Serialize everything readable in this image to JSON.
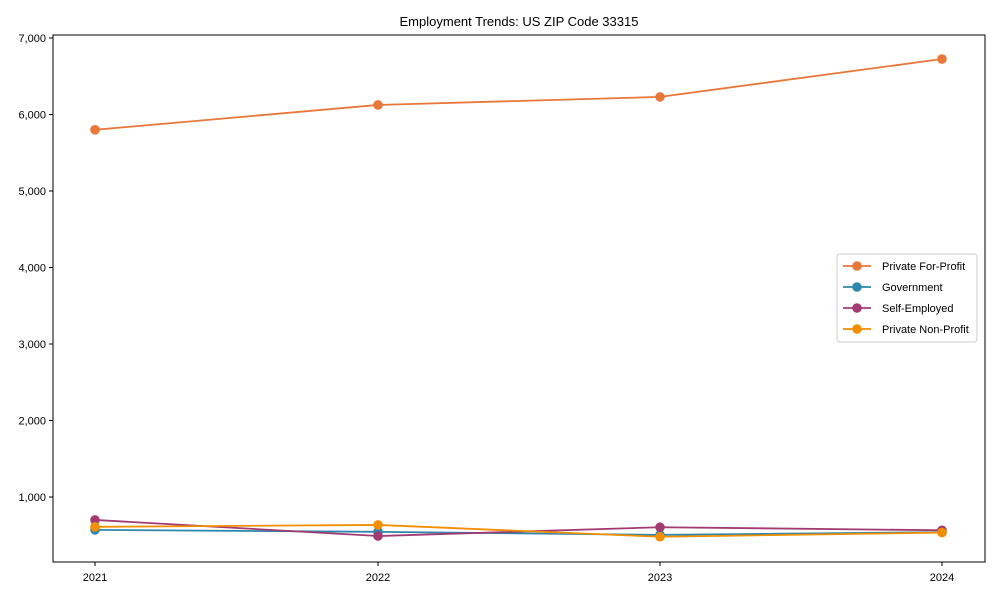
{
  "chart_data": {
    "type": "line",
    "title": "Employment Trends: US ZIP Code 33315",
    "xlabel": "",
    "ylabel": "",
    "categories": [
      "2021",
      "2022",
      "2023",
      "2024"
    ],
    "ylim": [
      150,
      7050
    ],
    "yticks": [
      1000,
      2000,
      3000,
      4000,
      5000,
      6000,
      7000
    ],
    "ytick_labels": [
      "1,000",
      "2,000",
      "3,000",
      "4,000",
      "5,000",
      "6,000",
      "7,000"
    ],
    "grid": false,
    "legend_position": "center right",
    "series": [
      {
        "name": "Private For-Profit",
        "color": "#E8773A",
        "values": [
          5800,
          6125,
          6230,
          6725
        ]
      },
      {
        "name": "Government",
        "color": "#2E86AB",
        "values": [
          570,
          545,
          505,
          540
        ]
      },
      {
        "name": "Self-Employed",
        "color": "#A23B72",
        "values": [
          700,
          490,
          605,
          565
        ]
      },
      {
        "name": "Private Non-Profit",
        "color": "#F18F01",
        "values": [
          610,
          635,
          480,
          535
        ]
      }
    ]
  }
}
